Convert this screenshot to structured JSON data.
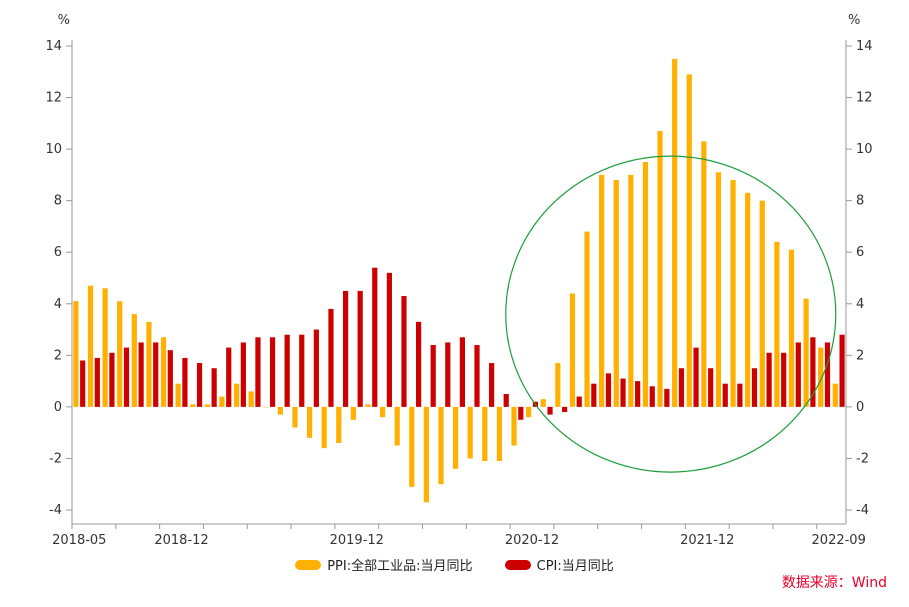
{
  "chart_data": {
    "type": "bar",
    "y_unit": "%",
    "ylim": [
      -4,
      14
    ],
    "y_ticks": [
      -4,
      -2,
      0,
      2,
      4,
      6,
      8,
      10,
      12,
      14
    ],
    "x_tick_labels": [
      {
        "index": 0,
        "label": "2018-05"
      },
      {
        "index": 7,
        "label": "2018-12"
      },
      {
        "index": 19,
        "label": "2019-12"
      },
      {
        "index": 31,
        "label": "2020-12"
      },
      {
        "index": 43,
        "label": "2021-12"
      },
      {
        "index": 52,
        "label": "2022-09"
      }
    ],
    "months": [
      "2018-05",
      "2018-06",
      "2018-07",
      "2018-08",
      "2018-09",
      "2018-10",
      "2018-11",
      "2018-12",
      "2019-01",
      "2019-02",
      "2019-03",
      "2019-04",
      "2019-05",
      "2019-06",
      "2019-07",
      "2019-08",
      "2019-09",
      "2019-10",
      "2019-11",
      "2019-12",
      "2020-01",
      "2020-02",
      "2020-03",
      "2020-04",
      "2020-05",
      "2020-06",
      "2020-07",
      "2020-08",
      "2020-09",
      "2020-10",
      "2020-11",
      "2020-12",
      "2021-01",
      "2021-02",
      "2021-03",
      "2021-04",
      "2021-05",
      "2021-06",
      "2021-07",
      "2021-08",
      "2021-09",
      "2021-10",
      "2021-11",
      "2021-12",
      "2022-01",
      "2022-02",
      "2022-03",
      "2022-04",
      "2022-05",
      "2022-06",
      "2022-07",
      "2022-08",
      "2022-09"
    ],
    "series": [
      {
        "name": "PPI:全部工业品:当月同比",
        "color": "#FFB000",
        "values": [
          4.1,
          4.7,
          4.6,
          4.1,
          3.6,
          3.3,
          2.7,
          0.9,
          0.1,
          0.1,
          0.4,
          0.9,
          0.6,
          0.0,
          -0.3,
          -0.8,
          -1.2,
          -1.6,
          -1.4,
          -0.5,
          0.1,
          -0.4,
          -1.5,
          -3.1,
          -3.7,
          -3.0,
          -2.4,
          -2.0,
          -2.1,
          -2.1,
          -1.5,
          -0.4,
          0.3,
          1.7,
          4.4,
          6.8,
          9.0,
          8.8,
          9.0,
          9.5,
          10.7,
          13.5,
          12.9,
          10.3,
          9.1,
          8.8,
          8.3,
          8.0,
          6.4,
          6.1,
          4.2,
          2.3,
          0.9
        ]
      },
      {
        "name": "CPI:当月同比",
        "color": "#CC0000",
        "values": [
          1.8,
          1.9,
          2.1,
          2.3,
          2.5,
          2.5,
          2.2,
          1.9,
          1.7,
          1.5,
          2.3,
          2.5,
          2.7,
          2.7,
          2.8,
          2.8,
          3.0,
          3.8,
          4.5,
          4.5,
          5.4,
          5.2,
          4.3,
          3.3,
          2.4,
          2.5,
          2.7,
          2.4,
          1.7,
          0.5,
          -0.5,
          0.2,
          -0.3,
          -0.2,
          0.4,
          0.9,
          1.3,
          1.1,
          1.0,
          0.8,
          0.7,
          1.5,
          2.3,
          1.5,
          0.9,
          0.9,
          1.5,
          2.1,
          2.1,
          2.5,
          2.7,
          2.5,
          2.8
        ]
      }
    ],
    "annotation": "green circle highlighting 2021 PPI surge",
    "legend_position": "bottom-center",
    "grid": false
  },
  "legend": {
    "ppi_label": "PPI:全部工业品:当月同比",
    "cpi_label": "CPI:当月同比"
  },
  "source_label": "数据来源：Wind",
  "colors": {
    "ppi": "#FFB000",
    "cpi": "#CC0000",
    "axis": "#999999",
    "circle": "#1a9e3a",
    "source": "#e8002a"
  }
}
